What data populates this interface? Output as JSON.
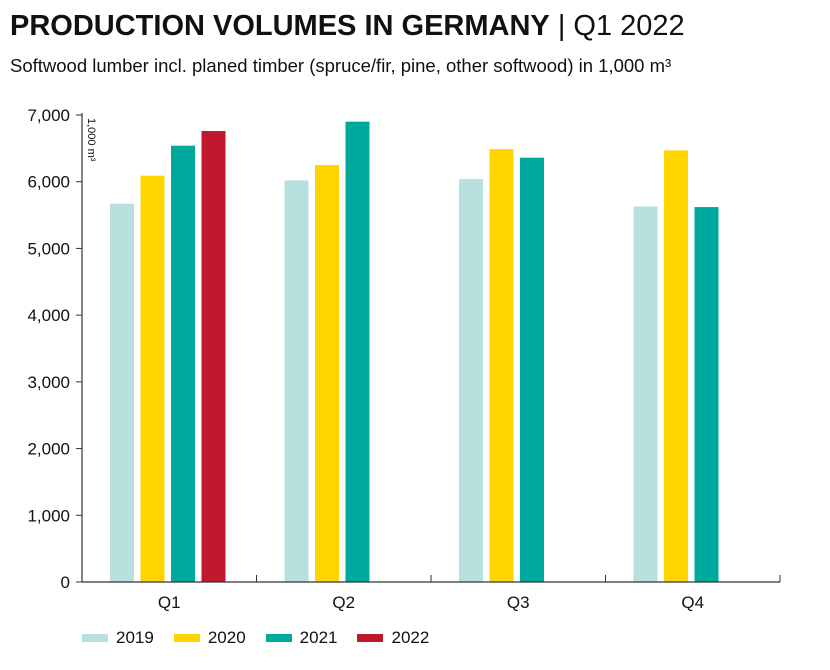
{
  "header": {
    "title": "PRODUCTION VOLUMES IN GERMANY",
    "separator": "|",
    "period": "Q1 2022",
    "subtitle": "Softwood lumber incl. planed timber (spruce/fir, pine, other softwood) in 1,000 m³"
  },
  "chart_data": {
    "type": "bar",
    "title": "PRODUCTION VOLUMES IN GERMANY | Q1 2022",
    "subtitle": "Softwood lumber incl. planed timber (spruce/fir, pine, other softwood) in 1,000 m³",
    "xlabel": "",
    "ylabel": "1,000 m³",
    "ylim": [
      0,
      7000
    ],
    "yticks": [
      0,
      1000,
      2000,
      3000,
      4000,
      5000,
      6000,
      7000
    ],
    "ytick_labels": [
      "0",
      "1,000",
      "2,000",
      "3,000",
      "4,000",
      "5,000",
      "6,000",
      "7,000"
    ],
    "categories": [
      "Q1",
      "Q2",
      "Q3",
      "Q4"
    ],
    "series": [
      {
        "name": "2019",
        "color": "#b8e0df",
        "values": [
          5670,
          6020,
          6040,
          5630
        ]
      },
      {
        "name": "2020",
        "color": "#ffd500",
        "values": [
          6090,
          6250,
          6490,
          6470
        ]
      },
      {
        "name": "2021",
        "color": "#00a99d",
        "values": [
          6540,
          6900,
          6360,
          5620
        ]
      },
      {
        "name": "2022",
        "color": "#c0182c",
        "values": [
          6760,
          null,
          null,
          null
        ]
      }
    ],
    "grid": false,
    "legend_position": "bottom-left"
  }
}
